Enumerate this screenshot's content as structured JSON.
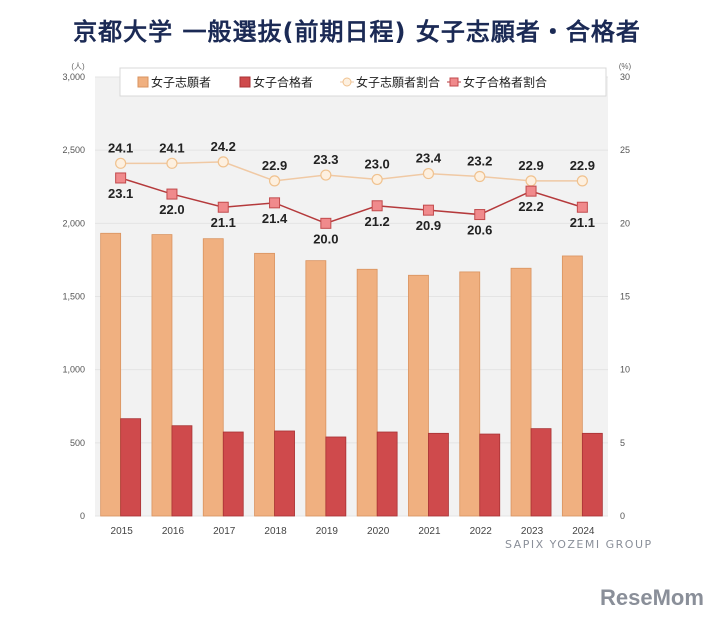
{
  "title": "京都大学 一般選抜(前期日程) 女子志願者・合格者",
  "credit": "SAPIX YOZEMI GROUP",
  "logo": "ReseMom",
  "chart_data": {
    "type": "bar",
    "categories": [
      "2015",
      "2016",
      "2017",
      "2018",
      "2019",
      "2020",
      "2021",
      "2022",
      "2023",
      "2024"
    ],
    "left_axis": {
      "unit": "(人)",
      "range": [
        0,
        3000
      ],
      "ticks": [
        0,
        500,
        1000,
        1500,
        2000,
        2500,
        3000
      ],
      "tick_labels": [
        "0",
        "500",
        "1,000",
        "1,500",
        "2,000",
        "2,500",
        "3,000"
      ]
    },
    "right_axis": {
      "unit": "(%)",
      "range": [
        0,
        30
      ],
      "ticks": [
        0,
        5,
        10,
        15,
        20,
        25,
        30
      ],
      "tick_labels": [
        "0",
        "5",
        "10",
        "15",
        "20",
        "25",
        "30"
      ]
    },
    "grid": true,
    "legend_position": "top",
    "series": [
      {
        "name": "女子志願者",
        "kind": "bar",
        "axis": "left",
        "color": "#f0b080",
        "values": [
          1932,
          1923,
          1895,
          1795,
          1745,
          1686,
          1645,
          1668,
          1693,
          1777
        ]
      },
      {
        "name": "女子合格者",
        "kind": "bar",
        "axis": "left",
        "color": "#cf4a4c",
        "values": [
          665,
          617,
          574,
          581,
          540,
          574,
          565,
          560,
          597,
          565
        ]
      },
      {
        "name": "女子志願者割合",
        "kind": "line",
        "axis": "right",
        "color": "#f5c9a0",
        "values": [
          24.1,
          24.1,
          24.2,
          22.9,
          23.3,
          23.0,
          23.4,
          23.2,
          22.9,
          22.9
        ],
        "labels": [
          "24.1",
          "24.1",
          "24.2",
          "22.9",
          "23.3",
          "23.0",
          "23.4",
          "23.2",
          "22.9",
          "22.9"
        ]
      },
      {
        "name": "女子合格者割合",
        "kind": "line",
        "axis": "right",
        "color": "#f08a8c",
        "values": [
          23.1,
          22.0,
          21.1,
          21.4,
          20.0,
          21.2,
          20.9,
          20.6,
          22.2,
          21.1
        ],
        "labels": [
          "23.1",
          "22.0",
          "21.1",
          "21.4",
          "20.0",
          "21.2",
          "20.9",
          "20.6",
          "22.2",
          "21.1"
        ]
      }
    ]
  }
}
